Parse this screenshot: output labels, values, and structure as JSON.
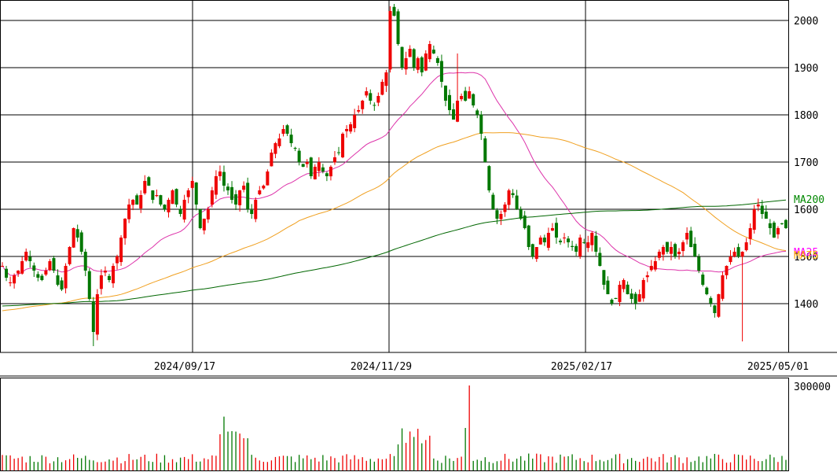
{
  "chart_data": [
    {
      "type": "candlestick",
      "panel": "price",
      "x_tick_labels": [
        "2024/09/17",
        "2024/11/29",
        "2025/02/17",
        "2025/05/01"
      ],
      "y_tick_labels": [
        "1400",
        "1500",
        "1600",
        "1700",
        "1800",
        "1900",
        "2000"
      ],
      "ylim": [
        1300,
        2030
      ],
      "grid": true,
      "colors": {
        "up": "#ee0000",
        "down": "#007700",
        "ma25": "#dd33aa",
        "ma75": "#f0a020",
        "ma200": "#006600"
      },
      "ma_labels": [
        {
          "key": "ma200",
          "text": "MA200",
          "color": "#008800"
        },
        {
          "key": "ma25",
          "text": "MA25",
          "color": "#ff00ff"
        },
        {
          "key": "ma75",
          "text": "MA75",
          "color": "#ffaa00"
        }
      ],
      "ohlc_anchor_closes": [
        1480,
        1455,
        1445,
        1460,
        1470,
        1490,
        1510,
        1490,
        1470,
        1455,
        1450,
        1470,
        1490,
        1470,
        1440,
        1430,
        1480,
        1520,
        1560,
        1540,
        1510,
        1470,
        1410,
        1340,
        1420,
        1460,
        1470,
        1450,
        1480,
        1500,
        1540,
        1580,
        1610,
        1620,
        1610,
        1630,
        1660,
        1650,
        1620,
        1630,
        1610,
        1600,
        1620,
        1640,
        1610,
        1590,
        1620,
        1640,
        1660,
        1610,
        1560,
        1580,
        1600,
        1640,
        1670,
        1680,
        1650,
        1640,
        1620,
        1610,
        1640,
        1650,
        1600,
        1590,
        1620,
        1640,
        1650,
        1680,
        1720,
        1740,
        1750,
        1770,
        1760,
        1740,
        1730,
        1700,
        1690,
        1700,
        1670,
        1690,
        1700,
        1680,
        1670,
        1690,
        1710,
        1720,
        1760,
        1770,
        1780,
        1800,
        1810,
        1830,
        1850,
        1830,
        1820,
        1840,
        1870,
        1890,
        2020,
        2010,
        1950,
        1900,
        1920,
        1940,
        1900,
        1920,
        1890,
        1930,
        1950,
        1930,
        1910,
        1870,
        1830,
        1810,
        1790,
        1830,
        1840,
        1830,
        1850,
        1820,
        1800,
        1760,
        1700,
        1640,
        1600,
        1580,
        1590,
        1610,
        1640,
        1630,
        1600,
        1580,
        1560,
        1520,
        1500,
        1520,
        1540,
        1530,
        1550,
        1560,
        1540,
        1530,
        1540,
        1530,
        1520,
        1510,
        1540,
        1530,
        1530,
        1550,
        1510,
        1480,
        1440,
        1420,
        1400,
        1410,
        1440,
        1450,
        1420,
        1410,
        1400,
        1420,
        1450,
        1460,
        1480,
        1490,
        1510,
        1520,
        1510,
        1520,
        1500,
        1510,
        1530,
        1550,
        1520,
        1500,
        1470,
        1440,
        1420,
        1400,
        1380,
        1420,
        1460,
        1480,
        1500,
        1510,
        1500,
        1510,
        1530,
        1560,
        1600,
        1610,
        1590,
        1580,
        1560,
        1540,
        1560,
        1570,
        1560
      ]
    },
    {
      "type": "bar",
      "panel": "volume",
      "y_tick_labels": [
        "300000"
      ],
      "ylim": [
        0,
        300000
      ],
      "colors": {
        "up": "#ee0000",
        "down": "#007700"
      }
    }
  ]
}
